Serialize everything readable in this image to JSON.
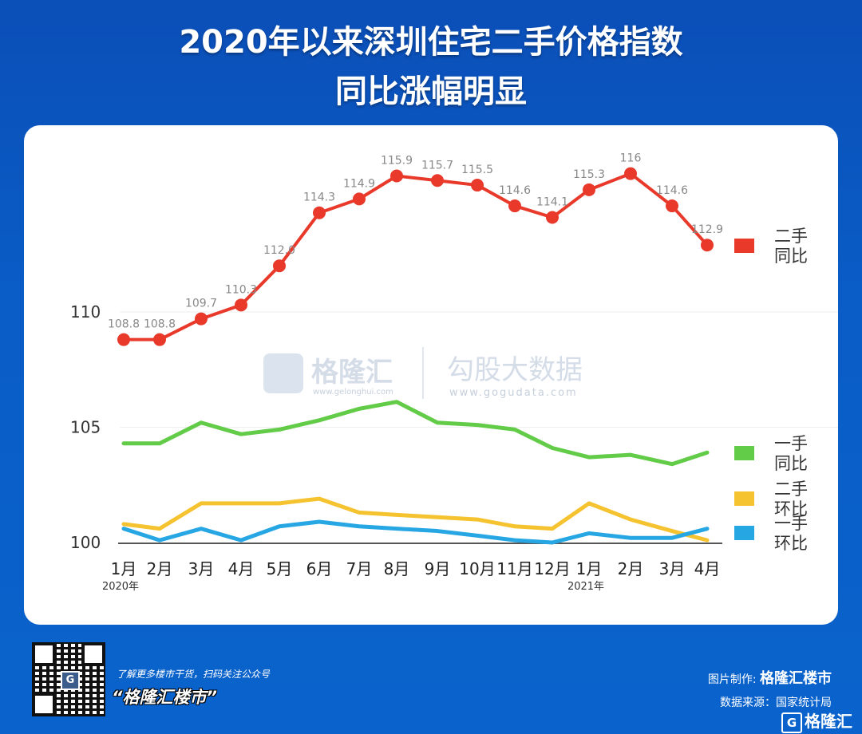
{
  "title_line1": "2020年以来深圳住宅二手价格指数",
  "title_line2": "同比涨幅明显",
  "chart_data": {
    "type": "line",
    "title": "2020年以来深圳住宅二手价格指数 同比涨幅明显",
    "categories": [
      "1月",
      "2月",
      "3月",
      "4月",
      "5月",
      "6月",
      "7月",
      "8月",
      "9月",
      "10月",
      "11月",
      "12月",
      "1月",
      "2月",
      "3月",
      "4月"
    ],
    "year_labels": [
      {
        "index": 0,
        "label": "2020年"
      },
      {
        "index": 12,
        "label": "2021年"
      }
    ],
    "y_ticks": [
      "100",
      "105",
      "110"
    ],
    "ylim": [
      100,
      116
    ],
    "grid": true,
    "legend_position": "right",
    "series": [
      {
        "name": "二手同比",
        "legend_lines": [
          "二手",
          "同比"
        ],
        "color": "#e8392a",
        "markers": true,
        "labeled": true,
        "labels": [
          "108.8",
          "108.8",
          "109.7",
          "110.3",
          "112.0",
          "114.3",
          "114.9",
          "115.9",
          "115.7",
          "115.5",
          "114.6",
          "114.1",
          "115.3",
          "116",
          "114.6",
          "112.9"
        ],
        "values": [
          108.8,
          108.8,
          109.7,
          110.3,
          112.0,
          114.3,
          114.9,
          115.9,
          115.7,
          115.5,
          114.6,
          114.1,
          115.3,
          116.0,
          114.6,
          112.9
        ]
      },
      {
        "name": "一手同比",
        "legend_lines": [
          "一手",
          "同比"
        ],
        "color": "#62cc48",
        "markers": false,
        "labeled": false,
        "values": [
          104.3,
          104.3,
          105.2,
          104.7,
          104.9,
          105.3,
          105.8,
          106.1,
          105.2,
          105.1,
          104.9,
          104.1,
          103.7,
          103.8,
          103.4,
          103.9
        ]
      },
      {
        "name": "二手环比",
        "legend_lines": [
          "二手",
          "环比"
        ],
        "color": "#f5c230",
        "markers": false,
        "labeled": false,
        "values": [
          100.8,
          100.6,
          101.7,
          101.7,
          101.7,
          101.9,
          101.3,
          101.2,
          101.1,
          101.0,
          100.7,
          100.6,
          101.7,
          101.0,
          100.5,
          100.1
        ]
      },
      {
        "name": "一手环比",
        "legend_lines": [
          "一手",
          "环比"
        ],
        "color": "#27a6e4",
        "markers": false,
        "labeled": false,
        "values": [
          100.6,
          100.1,
          100.6,
          100.1,
          100.7,
          100.9,
          100.7,
          100.6,
          100.5,
          100.3,
          100.1,
          100.0,
          100.4,
          100.2,
          100.2,
          100.6
        ]
      }
    ]
  },
  "watermark": {
    "brand1": "格隆汇",
    "url1": "www.gelonghui.com",
    "brand2": "勾股大数据",
    "url2": "www.gogudata.com"
  },
  "footer": {
    "qr_tagline": "了解更多楼市干货，扫码关注公众号",
    "account": "“格隆汇楼市”",
    "made_by_label": "图片制作: ",
    "made_by": "格隆汇楼市",
    "source": "数据来源：国家统计局",
    "logo": "格隆汇",
    "logo_mark": "G"
  }
}
